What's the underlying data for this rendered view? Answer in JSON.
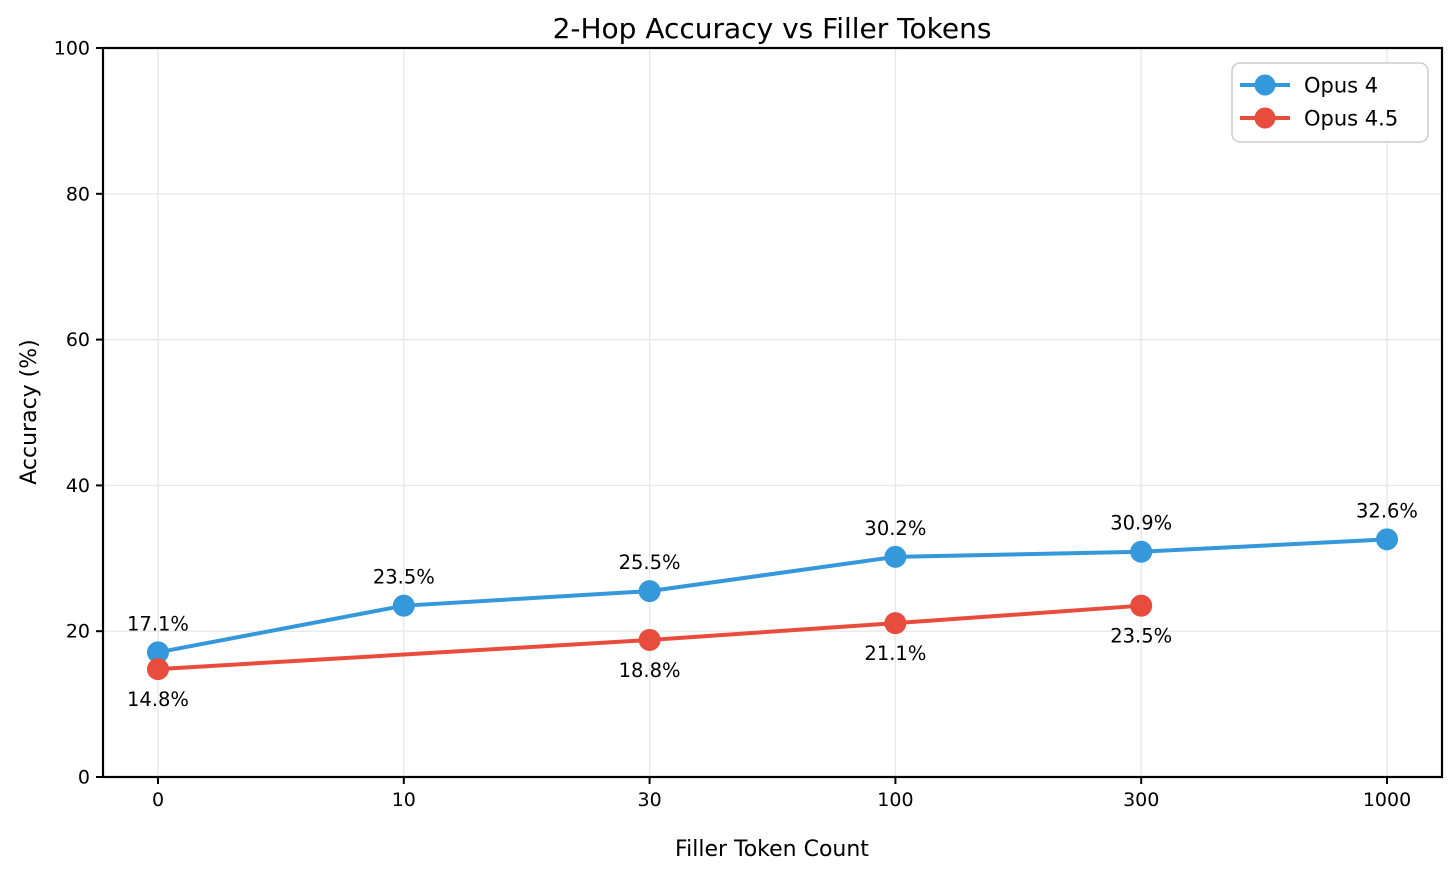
{
  "chart_data": {
    "type": "line",
    "title": "2-Hop Accuracy vs Filler Tokens",
    "xlabel": "Filler Token Count",
    "ylabel": "Accuracy (%)",
    "ylim": [
      0,
      100
    ],
    "y_ticks": [
      0,
      20,
      40,
      60,
      80,
      100
    ],
    "categories": [
      0,
      10,
      30,
      100,
      300,
      1000
    ],
    "x_tick_labels": [
      "0",
      "10",
      "30",
      "100",
      "300",
      "1000"
    ],
    "grid": true,
    "legend_position": "upper right",
    "background_color": "#ffffff",
    "grid_color": "#e8e8e8",
    "spine_color": "#000000",
    "series": [
      {
        "name": "Opus 4",
        "color": "#3498db",
        "x": [
          0,
          10,
          30,
          100,
          300,
          1000
        ],
        "values": [
          17.1,
          23.5,
          25.5,
          30.2,
          30.9,
          32.6
        ],
        "labels": [
          "17.1%",
          "23.5%",
          "25.5%",
          "30.2%",
          "30.9%",
          "32.6%"
        ],
        "label_side": "above"
      },
      {
        "name": "Opus 4.5",
        "color": "#e74c3c",
        "x": [
          0,
          30,
          100,
          300
        ],
        "values": [
          14.8,
          18.8,
          21.1,
          23.5
        ],
        "labels": [
          "14.8%",
          "18.8%",
          "21.1%",
          "23.5%"
        ],
        "label_side": "below"
      }
    ]
  }
}
